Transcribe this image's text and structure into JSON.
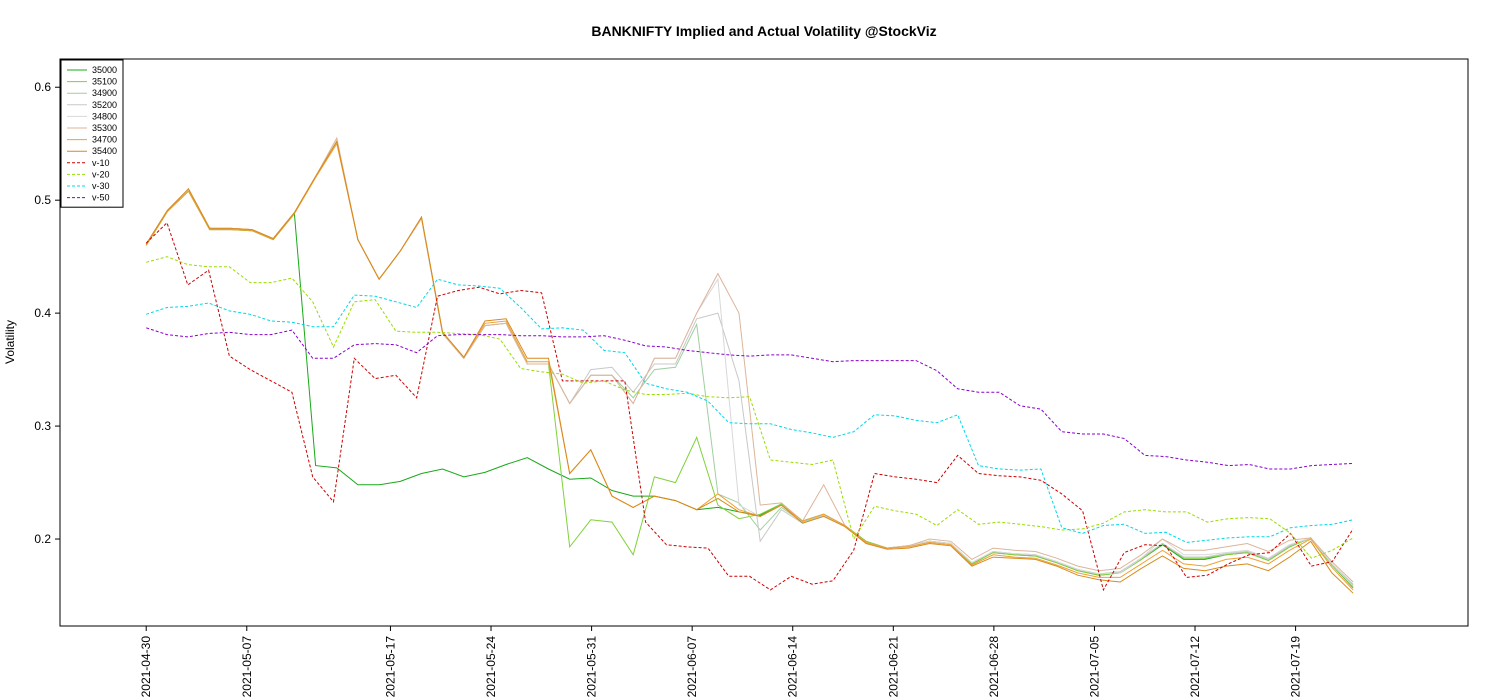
{
  "chart_data": {
    "type": "line",
    "title": "BANKNIFTY Implied and Actual Volatility @StockViz",
    "xlabel": "",
    "ylabel": "Volatility",
    "ylim": [
      0.123,
      0.625
    ],
    "yticks": [
      0.2,
      0.3,
      0.4,
      0.5,
      0.6
    ],
    "ytick_labels": [
      "0.2",
      "0.3",
      "0.4",
      "0.5",
      "0.6"
    ],
    "x_start": "2021-04-30",
    "x_end": "2021-07-23",
    "xlim": [
      "2021-04-24",
      "2021-07-31"
    ],
    "xticks": [
      "2021-04-30",
      "2021-05-07",
      "2021-05-17",
      "2021-05-24",
      "2021-05-31",
      "2021-06-07",
      "2021-06-14",
      "2021-06-21",
      "2021-06-28",
      "2021-07-05",
      "2021-07-12",
      "2021-07-19"
    ],
    "grid": false,
    "legend_position": "top-left",
    "series": [
      {
        "name": "35000",
        "color": "#1aa81a",
        "dash": "",
        "values": [
          0.46,
          0.49,
          0.508,
          0.474,
          0.474,
          0.473,
          0.465,
          0.488,
          0.265,
          0.263,
          0.248,
          0.248,
          0.251,
          0.258,
          0.262,
          0.255,
          0.259,
          0.266,
          0.272,
          0.262,
          0.253,
          0.254,
          0.243,
          0.238,
          0.238,
          0.234,
          0.226,
          0.228,
          0.224,
          0.221,
          0.231,
          0.216,
          0.222,
          0.212,
          0.198,
          0.192,
          0.194,
          0.198,
          0.196,
          0.178,
          0.188,
          0.186,
          0.185,
          0.179,
          0.172,
          0.168,
          0.17,
          0.182,
          0.195,
          0.182,
          0.182,
          0.186,
          0.188,
          0.181,
          0.193,
          0.201,
          0.177,
          0.157
        ]
      },
      {
        "name": "35100",
        "color": "#7fd13a",
        "dash": "",
        "values": [
          0.461,
          0.491,
          0.51,
          0.475,
          0.475,
          0.474,
          0.466,
          0.489,
          0.521,
          0.552,
          0.465,
          0.43,
          0.455,
          0.484,
          0.382,
          0.36,
          0.389,
          0.391,
          0.355,
          0.355,
          0.193,
          0.217,
          0.215,
          0.186,
          0.255,
          0.25,
          0.29,
          0.23,
          0.218,
          0.222,
          0.231,
          0.216,
          0.222,
          0.212,
          0.198,
          0.192,
          0.194,
          0.198,
          0.196,
          0.178,
          0.188,
          0.186,
          0.185,
          0.179,
          0.172,
          0.168,
          0.17,
          0.182,
          0.196,
          0.183,
          0.183,
          0.186,
          0.188,
          0.181,
          0.193,
          0.201,
          0.177,
          0.158
        ]
      },
      {
        "name": "34900",
        "color": "#9fcf9f",
        "dash": "",
        "values": [
          0.461,
          0.491,
          0.51,
          0.475,
          0.475,
          0.474,
          0.466,
          0.489,
          0.521,
          0.552,
          0.465,
          0.43,
          0.455,
          0.484,
          0.382,
          0.36,
          0.389,
          0.391,
          0.355,
          0.355,
          0.32,
          0.345,
          0.345,
          0.325,
          0.35,
          0.352,
          0.39,
          0.24,
          0.232,
          0.208,
          0.228,
          0.215,
          0.221,
          0.212,
          0.197,
          0.192,
          0.194,
          0.198,
          0.196,
          0.179,
          0.189,
          0.187,
          0.186,
          0.18,
          0.173,
          0.169,
          0.171,
          0.183,
          0.196,
          0.184,
          0.184,
          0.187,
          0.189,
          0.182,
          0.194,
          0.201,
          0.178,
          0.159
        ]
      },
      {
        "name": "35200",
        "color": "#c8c8c8",
        "dash": "",
        "values": [
          0.461,
          0.491,
          0.51,
          0.475,
          0.475,
          0.474,
          0.466,
          0.489,
          0.521,
          0.552,
          0.465,
          0.43,
          0.455,
          0.484,
          0.382,
          0.36,
          0.389,
          0.391,
          0.355,
          0.355,
          0.32,
          0.35,
          0.352,
          0.33,
          0.355,
          0.355,
          0.395,
          0.4,
          0.34,
          0.198,
          0.226,
          0.214,
          0.221,
          0.212,
          0.197,
          0.192,
          0.194,
          0.198,
          0.196,
          0.179,
          0.189,
          0.187,
          0.186,
          0.18,
          0.173,
          0.169,
          0.171,
          0.183,
          0.196,
          0.184,
          0.184,
          0.187,
          0.189,
          0.182,
          0.194,
          0.201,
          0.178,
          0.16
        ]
      },
      {
        "name": "34800",
        "color": "#d8d8d8",
        "dash": "",
        "values": [
          0.461,
          0.491,
          0.51,
          0.475,
          0.475,
          0.474,
          0.466,
          0.489,
          0.521,
          0.552,
          0.465,
          0.43,
          0.455,
          0.484,
          0.382,
          0.36,
          0.389,
          0.391,
          0.355,
          0.355,
          0.32,
          0.345,
          0.345,
          0.32,
          0.36,
          0.36,
          0.4,
          0.43,
          0.23,
          0.22,
          0.23,
          0.216,
          0.222,
          0.212,
          0.197,
          0.192,
          0.194,
          0.198,
          0.196,
          0.179,
          0.189,
          0.187,
          0.186,
          0.18,
          0.173,
          0.169,
          0.17,
          0.183,
          0.2,
          0.186,
          0.186,
          0.188,
          0.19,
          0.183,
          0.195,
          0.201,
          0.178,
          0.158
        ]
      },
      {
        "name": "35300",
        "color": "#ddb49a",
        "dash": "",
        "values": [
          0.461,
          0.491,
          0.51,
          0.475,
          0.475,
          0.474,
          0.466,
          0.489,
          0.521,
          0.555,
          0.465,
          0.43,
          0.455,
          0.484,
          0.382,
          0.36,
          0.389,
          0.391,
          0.355,
          0.355,
          0.32,
          0.345,
          0.345,
          0.32,
          0.36,
          0.36,
          0.4,
          0.435,
          0.4,
          0.23,
          0.232,
          0.216,
          0.248,
          0.212,
          0.197,
          0.192,
          0.194,
          0.2,
          0.198,
          0.182,
          0.192,
          0.19,
          0.189,
          0.183,
          0.176,
          0.172,
          0.174,
          0.186,
          0.2,
          0.19,
          0.19,
          0.193,
          0.196,
          0.189,
          0.199,
          0.201,
          0.18,
          0.162
        ]
      },
      {
        "name": "34700",
        "color": "#f0a030",
        "dash": "",
        "values": [
          0.46,
          0.49,
          0.508,
          0.474,
          0.474,
          0.473,
          0.465,
          0.488,
          0.52,
          0.55,
          0.465,
          0.43,
          0.455,
          0.485,
          0.383,
          0.361,
          0.391,
          0.393,
          0.357,
          0.357,
          0.258,
          0.279,
          0.238,
          0.228,
          0.238,
          0.234,
          0.226,
          0.24,
          0.226,
          0.22,
          0.23,
          0.216,
          0.222,
          0.212,
          0.197,
          0.192,
          0.193,
          0.197,
          0.195,
          0.177,
          0.186,
          0.184,
          0.183,
          0.177,
          0.17,
          0.166,
          0.166,
          0.178,
          0.19,
          0.178,
          0.176,
          0.182,
          0.184,
          0.178,
          0.19,
          0.2,
          0.175,
          0.155
        ]
      },
      {
        "name": "35400",
        "color": "#d98a1c",
        "dash": "",
        "values": [
          0.461,
          0.491,
          0.51,
          0.475,
          0.475,
          0.474,
          0.466,
          0.489,
          0.521,
          0.552,
          0.465,
          0.43,
          0.455,
          0.485,
          0.383,
          0.361,
          0.393,
          0.395,
          0.36,
          0.36,
          0.258,
          0.279,
          0.238,
          0.228,
          0.238,
          0.234,
          0.226,
          0.236,
          0.224,
          0.22,
          0.23,
          0.214,
          0.22,
          0.211,
          0.196,
          0.191,
          0.192,
          0.196,
          0.194,
          0.176,
          0.184,
          0.183,
          0.182,
          0.176,
          0.168,
          0.164,
          0.162,
          0.174,
          0.185,
          0.174,
          0.172,
          0.176,
          0.178,
          0.172,
          0.184,
          0.198,
          0.17,
          0.152
        ]
      },
      {
        "name": "v-10",
        "color": "#cc0000",
        "dash": "3,2",
        "values": [
          0.462,
          0.48,
          0.425,
          0.438,
          0.362,
          0.35,
          0.34,
          0.33,
          0.255,
          0.233,
          0.36,
          0.342,
          0.345,
          0.325,
          0.415,
          0.42,
          0.423,
          0.417,
          0.42,
          0.418,
          0.34,
          0.34,
          0.34,
          0.34,
          0.215,
          0.195,
          0.193,
          0.192,
          0.167,
          0.167,
          0.155,
          0.167,
          0.16,
          0.163,
          0.19,
          0.258,
          0.255,
          0.253,
          0.25,
          0.274,
          0.258,
          0.256,
          0.255,
          0.252,
          0.24,
          0.225,
          0.155,
          0.188,
          0.195,
          0.194,
          0.166,
          0.168,
          0.178,
          0.186,
          0.188,
          0.205,
          0.176,
          0.18,
          0.209
        ]
      },
      {
        "name": "v-20",
        "color": "#99dd00",
        "dash": "3,2",
        "values": [
          0.445,
          0.45,
          0.443,
          0.441,
          0.441,
          0.427,
          0.427,
          0.431,
          0.41,
          0.37,
          0.41,
          0.412,
          0.384,
          0.383,
          0.383,
          0.382,
          0.381,
          0.377,
          0.351,
          0.348,
          0.346,
          0.338,
          0.34,
          0.332,
          0.328,
          0.328,
          0.329,
          0.326,
          0.325,
          0.326,
          0.27,
          0.268,
          0.266,
          0.27,
          0.2,
          0.229,
          0.225,
          0.222,
          0.212,
          0.226,
          0.213,
          0.215,
          0.213,
          0.211,
          0.208,
          0.209,
          0.214,
          0.224,
          0.226,
          0.224,
          0.224,
          0.215,
          0.218,
          0.219,
          0.218,
          0.205,
          0.183,
          0.19,
          0.201
        ]
      },
      {
        "name": "v-30",
        "color": "#00d8e8",
        "dash": "3,2",
        "values": [
          0.399,
          0.405,
          0.406,
          0.409,
          0.402,
          0.399,
          0.393,
          0.392,
          0.388,
          0.388,
          0.416,
          0.415,
          0.41,
          0.405,
          0.43,
          0.425,
          0.424,
          0.422,
          0.405,
          0.386,
          0.387,
          0.385,
          0.367,
          0.365,
          0.338,
          0.333,
          0.33,
          0.322,
          0.303,
          0.302,
          0.302,
          0.297,
          0.294,
          0.29,
          0.295,
          0.31,
          0.309,
          0.305,
          0.303,
          0.31,
          0.265,
          0.262,
          0.261,
          0.262,
          0.21,
          0.205,
          0.212,
          0.213,
          0.205,
          0.206,
          0.197,
          0.199,
          0.201,
          0.202,
          0.202,
          0.21,
          0.212,
          0.213,
          0.217
        ]
      },
      {
        "name": "v-50",
        "color": "#8800cc",
        "dash": "3,2",
        "values": [
          0.387,
          0.381,
          0.379,
          0.382,
          0.383,
          0.381,
          0.381,
          0.385,
          0.36,
          0.36,
          0.372,
          0.373,
          0.372,
          0.365,
          0.38,
          0.381,
          0.381,
          0.381,
          0.38,
          0.38,
          0.379,
          0.379,
          0.38,
          0.376,
          0.371,
          0.37,
          0.367,
          0.365,
          0.363,
          0.362,
          0.363,
          0.363,
          0.36,
          0.357,
          0.358,
          0.358,
          0.358,
          0.358,
          0.349,
          0.333,
          0.33,
          0.33,
          0.318,
          0.315,
          0.295,
          0.293,
          0.293,
          0.289,
          0.274,
          0.273,
          0.27,
          0.268,
          0.265,
          0.266,
          0.262,
          0.262,
          0.265,
          0.266,
          0.267
        ]
      }
    ]
  }
}
